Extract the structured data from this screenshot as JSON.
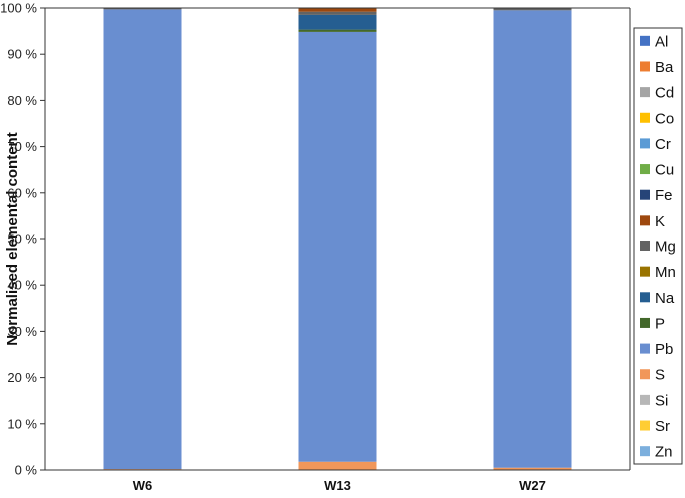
{
  "chart_data": {
    "type": "bar",
    "stacked": true,
    "normalised": true,
    "title": "",
    "xlabel": "",
    "ylabel": "Normalised elemental content",
    "ylim": [
      0,
      100
    ],
    "y_ticks": [
      "0 %",
      "10 %",
      "20 %",
      "30 %",
      "40 %",
      "50 %",
      "60 %",
      "70 %",
      "80 %",
      "90 %",
      "100 %"
    ],
    "y_tick_values": [
      0,
      10,
      20,
      30,
      40,
      50,
      60,
      70,
      80,
      90,
      100
    ],
    "grid": false,
    "legend_position": "right",
    "categories": [
      "W6",
      "W13",
      "W27"
    ],
    "series": [
      {
        "name": "Al",
        "color": "#4472c4",
        "values": [
          0,
          0,
          0
        ]
      },
      {
        "name": "Ba",
        "color": "#ed7d31",
        "values": [
          0,
          0,
          0
        ]
      },
      {
        "name": "Cd",
        "color": "#a5a5a5",
        "values": [
          0,
          0,
          0
        ]
      },
      {
        "name": "Co",
        "color": "#ffc000",
        "values": [
          0,
          0,
          0
        ]
      },
      {
        "name": "Cr",
        "color": "#5b9bd5",
        "values": [
          0,
          0,
          0
        ]
      },
      {
        "name": "Cu",
        "color": "#70ad47",
        "values": [
          0,
          0,
          0
        ]
      },
      {
        "name": "Fe",
        "color": "#264478",
        "values": [
          0,
          0,
          0
        ]
      },
      {
        "name": "K",
        "color": "#9e480e",
        "values": [
          0,
          0.8,
          0
        ]
      },
      {
        "name": "Mg",
        "color": "#636363",
        "values": [
          0.3,
          0.7,
          0.5
        ]
      },
      {
        "name": "Mn",
        "color": "#997300",
        "values": [
          0,
          0,
          0
        ]
      },
      {
        "name": "Na",
        "color": "#255e91",
        "values": [
          0,
          3.2,
          0
        ]
      },
      {
        "name": "P",
        "color": "#43682b",
        "values": [
          0,
          0.5,
          0
        ]
      },
      {
        "name": "Pb",
        "color": "#698ed0",
        "values": [
          99.5,
          93.5,
          99.0
        ]
      },
      {
        "name": "S",
        "color": "#f1975a",
        "values": [
          0.2,
          1.8,
          0.5
        ]
      },
      {
        "name": "Si",
        "color": "#b7b7b7",
        "values": [
          0,
          0,
          0
        ]
      },
      {
        "name": "Sr",
        "color": "#ffcd33",
        "values": [
          0,
          0,
          0
        ]
      },
      {
        "name": "Zn",
        "color": "#7cafdd",
        "values": [
          0,
          0,
          0
        ]
      }
    ]
  }
}
